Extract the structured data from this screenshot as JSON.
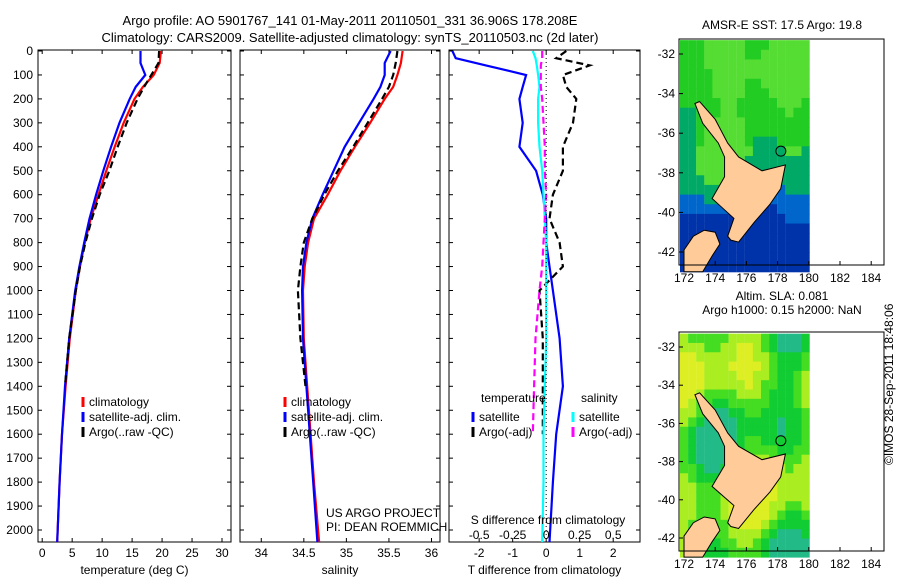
{
  "title_line1": "Argo profile: AO 5901767_141 01-May-2011 20110501_331 36.906S 178.208E",
  "title_line2": "Climatology: CARS2009. Satellite-adjusted climatology: synTS_20110503.nc (2d later)",
  "colors": {
    "climatology": "#ff0000",
    "satellite": "#0000ff",
    "argo": "#000000",
    "s_satellite": "#00ffff",
    "s_argo": "#ff00ff",
    "land": "#ffcc99"
  },
  "chart_data": [
    {
      "type": "line",
      "name": "temperature-profile",
      "xlabel": "temperature (deg C)",
      "ylabel": "",
      "xlim": [
        -0.7,
        31.5
      ],
      "ylim": [
        2050,
        0
      ],
      "xticks": [
        "0",
        "5",
        "10",
        "15",
        "20",
        "25",
        "30"
      ],
      "yticks": [
        "0",
        "100",
        "200",
        "300",
        "400",
        "500",
        "600",
        "700",
        "800",
        "900",
        "1000",
        "1100",
        "1200",
        "1300",
        "1400",
        "1500",
        "1600",
        "1700",
        "1800",
        "1900",
        "2000"
      ],
      "legend": [
        "climatology",
        "satellite-adj. clim.",
        "Argo(..raw -QC)"
      ],
      "depth": [
        0,
        50,
        100,
        150,
        200,
        300,
        400,
        500,
        600,
        700,
        800,
        900,
        1000,
        1200,
        1400,
        1600,
        1800,
        2050
      ],
      "series": [
        {
          "name": "climatology",
          "values": [
            19.8,
            19.6,
            18.6,
            16.8,
            15.4,
            13.6,
            12.1,
            10.7,
            9.4,
            8.1,
            7.1,
            6.3,
            5.6,
            4.6,
            3.9,
            3.3,
            2.9,
            2.5
          ]
        },
        {
          "name": "satellite-adj. clim.",
          "values": [
            16.4,
            16.4,
            17.2,
            15.6,
            14.6,
            12.9,
            11.5,
            10.2,
            9.0,
            7.9,
            7.0,
            6.2,
            5.5,
            4.5,
            3.8,
            3.3,
            2.9,
            2.5
          ]
        },
        {
          "name": "Argo(..raw -QC)",
          "values": [
            19.5,
            19.4,
            18.2,
            17.0,
            15.9,
            14.1,
            12.6,
            11.2,
            9.6,
            8.3,
            7.2,
            6.3,
            5.6,
            4.5,
            3.8,
            null,
            null,
            null
          ]
        }
      ]
    },
    {
      "type": "line",
      "name": "salinity-profile",
      "xlabel": "salinity",
      "xlim": [
        33.75,
        36.1
      ],
      "ylim": [
        2050,
        0
      ],
      "xticks": [
        "34",
        "34.5",
        "35",
        "35.5",
        "36"
      ],
      "legend": [
        "climatology",
        "satellite-adj. clim.",
        "Argo(..raw -QC)"
      ],
      "annotation": [
        "US ARGO PROJECT",
        "PI: DEAN ROEMMICH"
      ],
      "depth": [
        0,
        50,
        100,
        150,
        200,
        300,
        400,
        500,
        600,
        700,
        800,
        900,
        1000,
        1200,
        1400,
        1600,
        1800,
        2050
      ],
      "series": [
        {
          "name": "climatology",
          "values": [
            35.66,
            35.64,
            35.6,
            35.55,
            35.45,
            35.28,
            35.1,
            34.93,
            34.78,
            34.62,
            34.55,
            34.51,
            34.49,
            34.5,
            34.54,
            34.58,
            34.62,
            34.68
          ]
        },
        {
          "name": "satellite-adj. clim.",
          "values": [
            35.52,
            35.45,
            35.45,
            35.4,
            35.32,
            35.15,
            34.98,
            34.85,
            34.72,
            34.6,
            34.53,
            34.49,
            34.48,
            34.49,
            34.53,
            34.57,
            34.61,
            34.66
          ]
        },
        {
          "name": "Argo(..raw -QC)",
          "values": [
            35.6,
            35.58,
            35.55,
            35.5,
            35.42,
            35.25,
            35.08,
            34.9,
            34.74,
            34.6,
            34.5,
            34.46,
            34.43,
            34.46,
            34.52,
            null,
            null,
            null
          ]
        }
      ]
    },
    {
      "type": "line",
      "name": "difference-profile",
      "xlabel": "T difference from climatology",
      "x2label": "S difference from climatology",
      "xlim": [
        -2.9,
        2.8
      ],
      "ylim": [
        2050,
        0
      ],
      "xticks": [
        "-2",
        "-1",
        "0",
        "1",
        "2"
      ],
      "x2ticks": [
        "-0.5",
        "-0.25",
        "0",
        "0.25",
        "0.5"
      ],
      "legend_temperature_title": "temperature",
      "legend_salinity_title": "salinity",
      "legend": [
        "satellite",
        "Argo(-adj)",
        "satellite",
        "Argo(-adj)"
      ],
      "depth": [
        0,
        30,
        60,
        100,
        150,
        200,
        300,
        400,
        500,
        600,
        700,
        800,
        900,
        1000,
        1200,
        1400,
        1600,
        1800,
        2050
      ],
      "series": [
        {
          "name": "T satellite",
          "axis": "T",
          "values": [
            -2.8,
            -2.7,
            -1.8,
            -0.6,
            -0.7,
            -0.8,
            -0.7,
            -0.8,
            -0.3,
            -0.1,
            0.0,
            0.0,
            0.1,
            0.2,
            0.4,
            0.5,
            0.3,
            0.2,
            0.1
          ]
        },
        {
          "name": "T Argo(-adj)",
          "axis": "T",
          "values": [
            0.6,
            0.3,
            1.3,
            0.5,
            0.6,
            0.9,
            0.8,
            0.5,
            0.5,
            0.2,
            0.1,
            0.4,
            0.5,
            -0.2,
            -0.1,
            -0.1,
            -0.1,
            null,
            null
          ]
        },
        {
          "name": "S satellite",
          "axis": "S",
          "values": [
            -0.1,
            -0.08,
            -0.07,
            -0.06,
            -0.05,
            -0.06,
            -0.06,
            -0.05,
            -0.03,
            -0.02,
            -0.01,
            0.0,
            0.0,
            0.0,
            0.0,
            -0.01,
            -0.02,
            -0.02,
            -0.03
          ]
        },
        {
          "name": "S Argo(-adj)",
          "axis": "S",
          "values": [
            -0.03,
            -0.03,
            -0.04,
            -0.04,
            -0.04,
            -0.03,
            -0.02,
            -0.01,
            -0.01,
            0.0,
            -0.01,
            -0.02,
            -0.03,
            -0.05,
            -0.08,
            -0.09,
            -0.1,
            null,
            null
          ]
        }
      ]
    }
  ],
  "map1": {
    "title": "AMSR-E SST: 17.5 Argo: 19.8",
    "xticks": [
      "172",
      "174",
      "176",
      "178",
      "180",
      "182",
      "184"
    ],
    "yticks": [
      "-32",
      "-34",
      "-36",
      "-38",
      "-40",
      "-42"
    ]
  },
  "map2": {
    "title1": "Altim. SLA: 0.081",
    "title2": "Argo h1000: 0.15 h2000: NaN",
    "xticks": [
      "172",
      "174",
      "176",
      "178",
      "180",
      "182",
      "184"
    ],
    "yticks": [
      "-32",
      "-34",
      "-36",
      "-38",
      "-40",
      "-42"
    ]
  },
  "stamp": "©IMOS 28-Sep-2011 18:48:06"
}
